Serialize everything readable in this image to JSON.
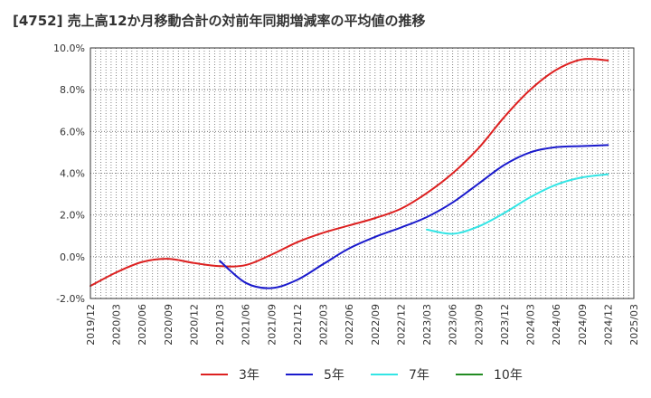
{
  "title": "[4752]  売上高12か月移動合計の対前年同期増減率の平均値の推移",
  "chart_data": {
    "type": "line",
    "x": [
      "2019/12",
      "2020/03",
      "2020/06",
      "2020/09",
      "2020/12",
      "2021/03",
      "2021/06",
      "2021/09",
      "2021/12",
      "2022/03",
      "2022/06",
      "2022/09",
      "2022/12",
      "2023/03",
      "2023/06",
      "2023/09",
      "2023/12",
      "2024/03",
      "2024/06",
      "2024/09",
      "2024/12",
      "2025/03"
    ],
    "ylim": [
      -2.0,
      10.0
    ],
    "yticks": [
      "10.0%",
      "8.0%",
      "6.0%",
      "4.0%",
      "2.0%",
      "0.0%",
      "-2.0%"
    ],
    "ytick_values": [
      10,
      8,
      6,
      4,
      2,
      0,
      -2
    ],
    "grid": true,
    "legend_position": "bottom",
    "series": [
      {
        "name": "3年",
        "color": "#dd2020",
        "values": [
          -1.4,
          -0.75,
          -0.25,
          -0.1,
          -0.3,
          -0.45,
          -0.4,
          0.1,
          0.7,
          1.15,
          1.5,
          1.85,
          2.3,
          3.05,
          4.0,
          5.2,
          6.7,
          8.0,
          8.95,
          9.45,
          9.4,
          null
        ]
      },
      {
        "name": "5年",
        "color": "#1a1acc",
        "values": [
          null,
          null,
          null,
          null,
          null,
          -0.2,
          -1.25,
          -1.5,
          -1.1,
          -0.35,
          0.4,
          0.95,
          1.4,
          1.9,
          2.6,
          3.5,
          4.4,
          5.0,
          5.25,
          5.3,
          5.35,
          null
        ]
      },
      {
        "name": "7年",
        "color": "#33e5e5",
        "values": [
          null,
          null,
          null,
          null,
          null,
          null,
          null,
          null,
          null,
          null,
          null,
          null,
          null,
          1.3,
          1.1,
          1.45,
          2.1,
          2.85,
          3.45,
          3.8,
          3.95,
          null
        ]
      },
      {
        "name": "10年",
        "color": "#228b22",
        "values": [
          null,
          null,
          null,
          null,
          null,
          null,
          null,
          null,
          null,
          null,
          null,
          null,
          null,
          null,
          null,
          null,
          null,
          null,
          null,
          null,
          null,
          null
        ]
      }
    ]
  }
}
